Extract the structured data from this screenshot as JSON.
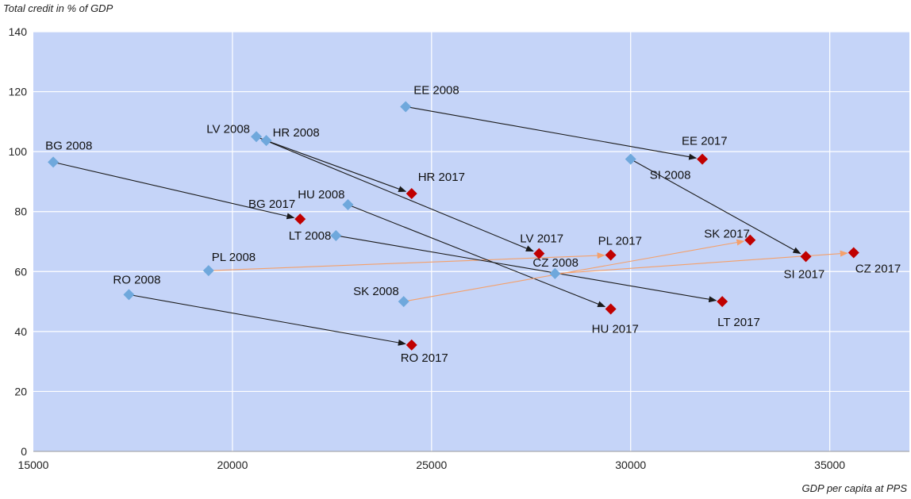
{
  "chart_data": {
    "type": "scatter",
    "title": "",
    "xlabel": "GDP per capita at PPS",
    "ylabel": "Total credit in % of GDP",
    "xlim": [
      15000,
      37000
    ],
    "ylim": [
      0,
      140
    ],
    "xticks": [
      15000,
      20000,
      25000,
      30000,
      35000
    ],
    "yticks": [
      0,
      20,
      40,
      60,
      80,
      100,
      120,
      140
    ],
    "grid": true,
    "colors": {
      "plot_bg": "#c5d4f8",
      "grid": "#ffffff",
      "series_2008": "#6fa8dc",
      "series_2017": "#c00000",
      "arrow_dark": "#1a1a1a",
      "arrow_orange": "#f4a06b"
    },
    "points_2008": [
      {
        "label": "BG 2008",
        "x": 15500,
        "y": 96.5
      },
      {
        "label": "RO 2008",
        "x": 17400,
        "y": 52.3
      },
      {
        "label": "PL 2008",
        "x": 19400,
        "y": 60.3
      },
      {
        "label": "LV 2008",
        "x": 20600,
        "y": 105
      },
      {
        "label": "HR 2008",
        "x": 20850,
        "y": 103.7
      },
      {
        "label": "LT 2008",
        "x": 22600,
        "y": 72
      },
      {
        "label": "HU 2008",
        "x": 22900,
        "y": 82.3
      },
      {
        "label": "SK 2008",
        "x": 24300,
        "y": 50
      },
      {
        "label": "EE 2008",
        "x": 24350,
        "y": 115
      },
      {
        "label": "CZ 2008",
        "x": 28100,
        "y": 59.3
      },
      {
        "label": "SI 2008",
        "x": 30000,
        "y": 97.5
      }
    ],
    "points_2017": [
      {
        "label": "BG 2017",
        "x": 21700,
        "y": 77.5
      },
      {
        "label": "HR 2017",
        "x": 24500,
        "y": 86
      },
      {
        "label": "RO 2017",
        "x": 24500,
        "y": 35.5
      },
      {
        "label": "LV 2017",
        "x": 27700,
        "y": 66
      },
      {
        "label": "PL 2017",
        "x": 29500,
        "y": 65.5
      },
      {
        "label": "HU 2017",
        "x": 29500,
        "y": 47.5
      },
      {
        "label": "EE 2017",
        "x": 31800,
        "y": 97.5
      },
      {
        "label": "LT 2017",
        "x": 32300,
        "y": 50
      },
      {
        "label": "SK 2017",
        "x": 33000,
        "y": 70.5
      },
      {
        "label": "SI 2017",
        "x": 34400,
        "y": 65
      },
      {
        "label": "CZ 2017",
        "x": 35600,
        "y": 66.3
      }
    ],
    "arrows": [
      {
        "from": "BG 2008",
        "to": "BG 2017",
        "color": "dark"
      },
      {
        "from": "RO 2008",
        "to": "RO 2017",
        "color": "dark"
      },
      {
        "from": "PL 2008",
        "to": "PL 2017",
        "color": "orange"
      },
      {
        "from": "LV 2008",
        "to": "LV 2017",
        "color": "dark"
      },
      {
        "from": "HR 2008",
        "to": "HR 2017",
        "color": "dark"
      },
      {
        "from": "LT 2008",
        "to": "LT 2017",
        "color": "dark"
      },
      {
        "from": "HU 2008",
        "to": "HU 2017",
        "color": "dark"
      },
      {
        "from": "SK 2008",
        "to": "SK 2017",
        "color": "orange"
      },
      {
        "from": "EE 2008",
        "to": "EE 2017",
        "color": "dark"
      },
      {
        "from": "CZ 2008",
        "to": "CZ 2017",
        "color": "orange"
      },
      {
        "from": "SI 2008",
        "to": "SI 2017",
        "color": "dark"
      }
    ]
  }
}
